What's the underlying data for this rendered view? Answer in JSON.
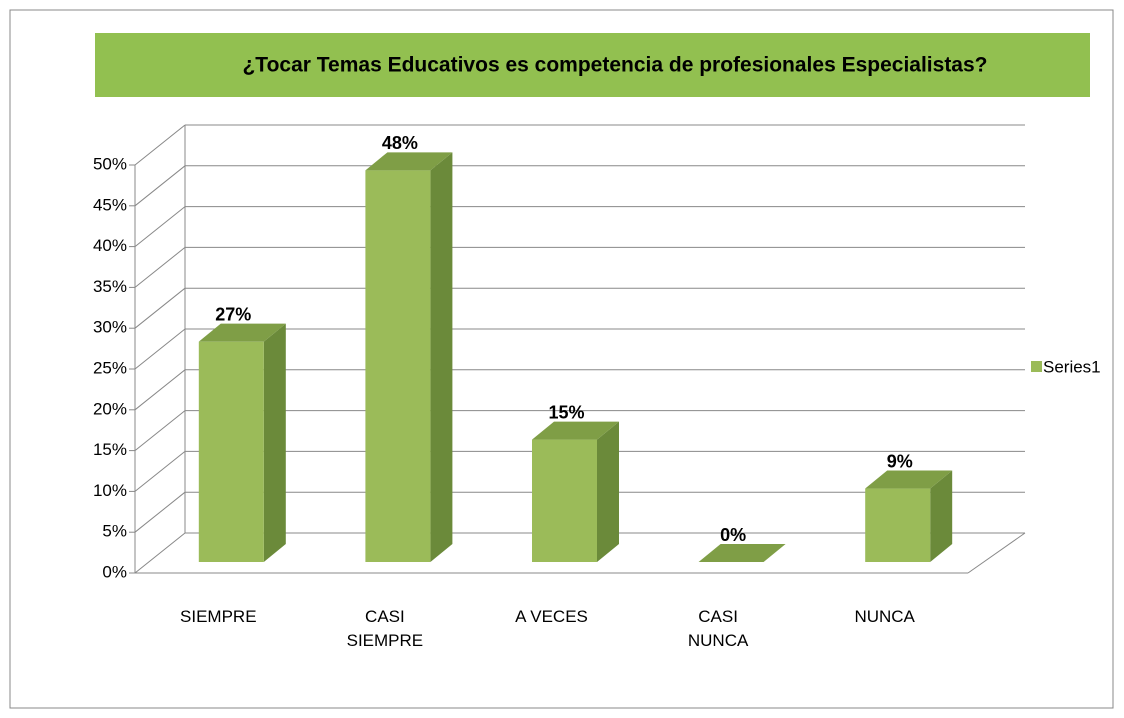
{
  "chart_data": {
    "type": "bar3d",
    "title": "¿Tocar Temas Educativos  es competencia de profesionales Especialistas?",
    "categories": [
      "SIEMPRE",
      "CASI SIEMPRE",
      "A VECES",
      "CASI NUNCA",
      "NUNCA"
    ],
    "series": [
      {
        "name": "Series1",
        "color": "#9bbb59",
        "values": [
          27,
          48,
          15,
          0,
          9
        ],
        "value_labels": [
          "27%",
          "48%",
          "15%",
          "0%",
          "9%"
        ]
      }
    ],
    "ylim": [
      0,
      50
    ],
    "yticks": [
      {
        "value": 0,
        "label": "0%"
      },
      {
        "value": 5,
        "label": "5%"
      },
      {
        "value": 10,
        "label": "10%"
      },
      {
        "value": 15,
        "label": "15%"
      },
      {
        "value": 20,
        "label": "20%"
      },
      {
        "value": 25,
        "label": "25%"
      },
      {
        "value": 30,
        "label": "30%"
      },
      {
        "value": 35,
        "label": "35%"
      },
      {
        "value": 40,
        "label": "40%"
      },
      {
        "value": 45,
        "label": "45%"
      },
      {
        "value": 50,
        "label": "50%"
      }
    ],
    "grid": true,
    "legend": "right"
  }
}
